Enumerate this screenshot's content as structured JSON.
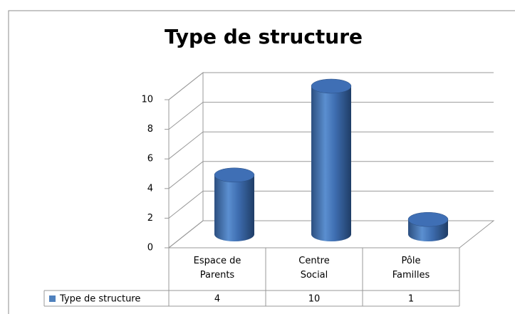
{
  "chart_data": {
    "type": "bar",
    "title": "Type de structure",
    "categories": [
      "Espace de Parents",
      "Centre Social",
      "Pôle Familles"
    ],
    "series": [
      {
        "name": "Type de structure",
        "color": "#4f81bd",
        "values": [
          4,
          10,
          1
        ]
      }
    ],
    "ylim": [
      0,
      10
    ],
    "yticks": [
      0,
      2,
      4,
      6,
      8,
      10
    ],
    "grid": true
  }
}
